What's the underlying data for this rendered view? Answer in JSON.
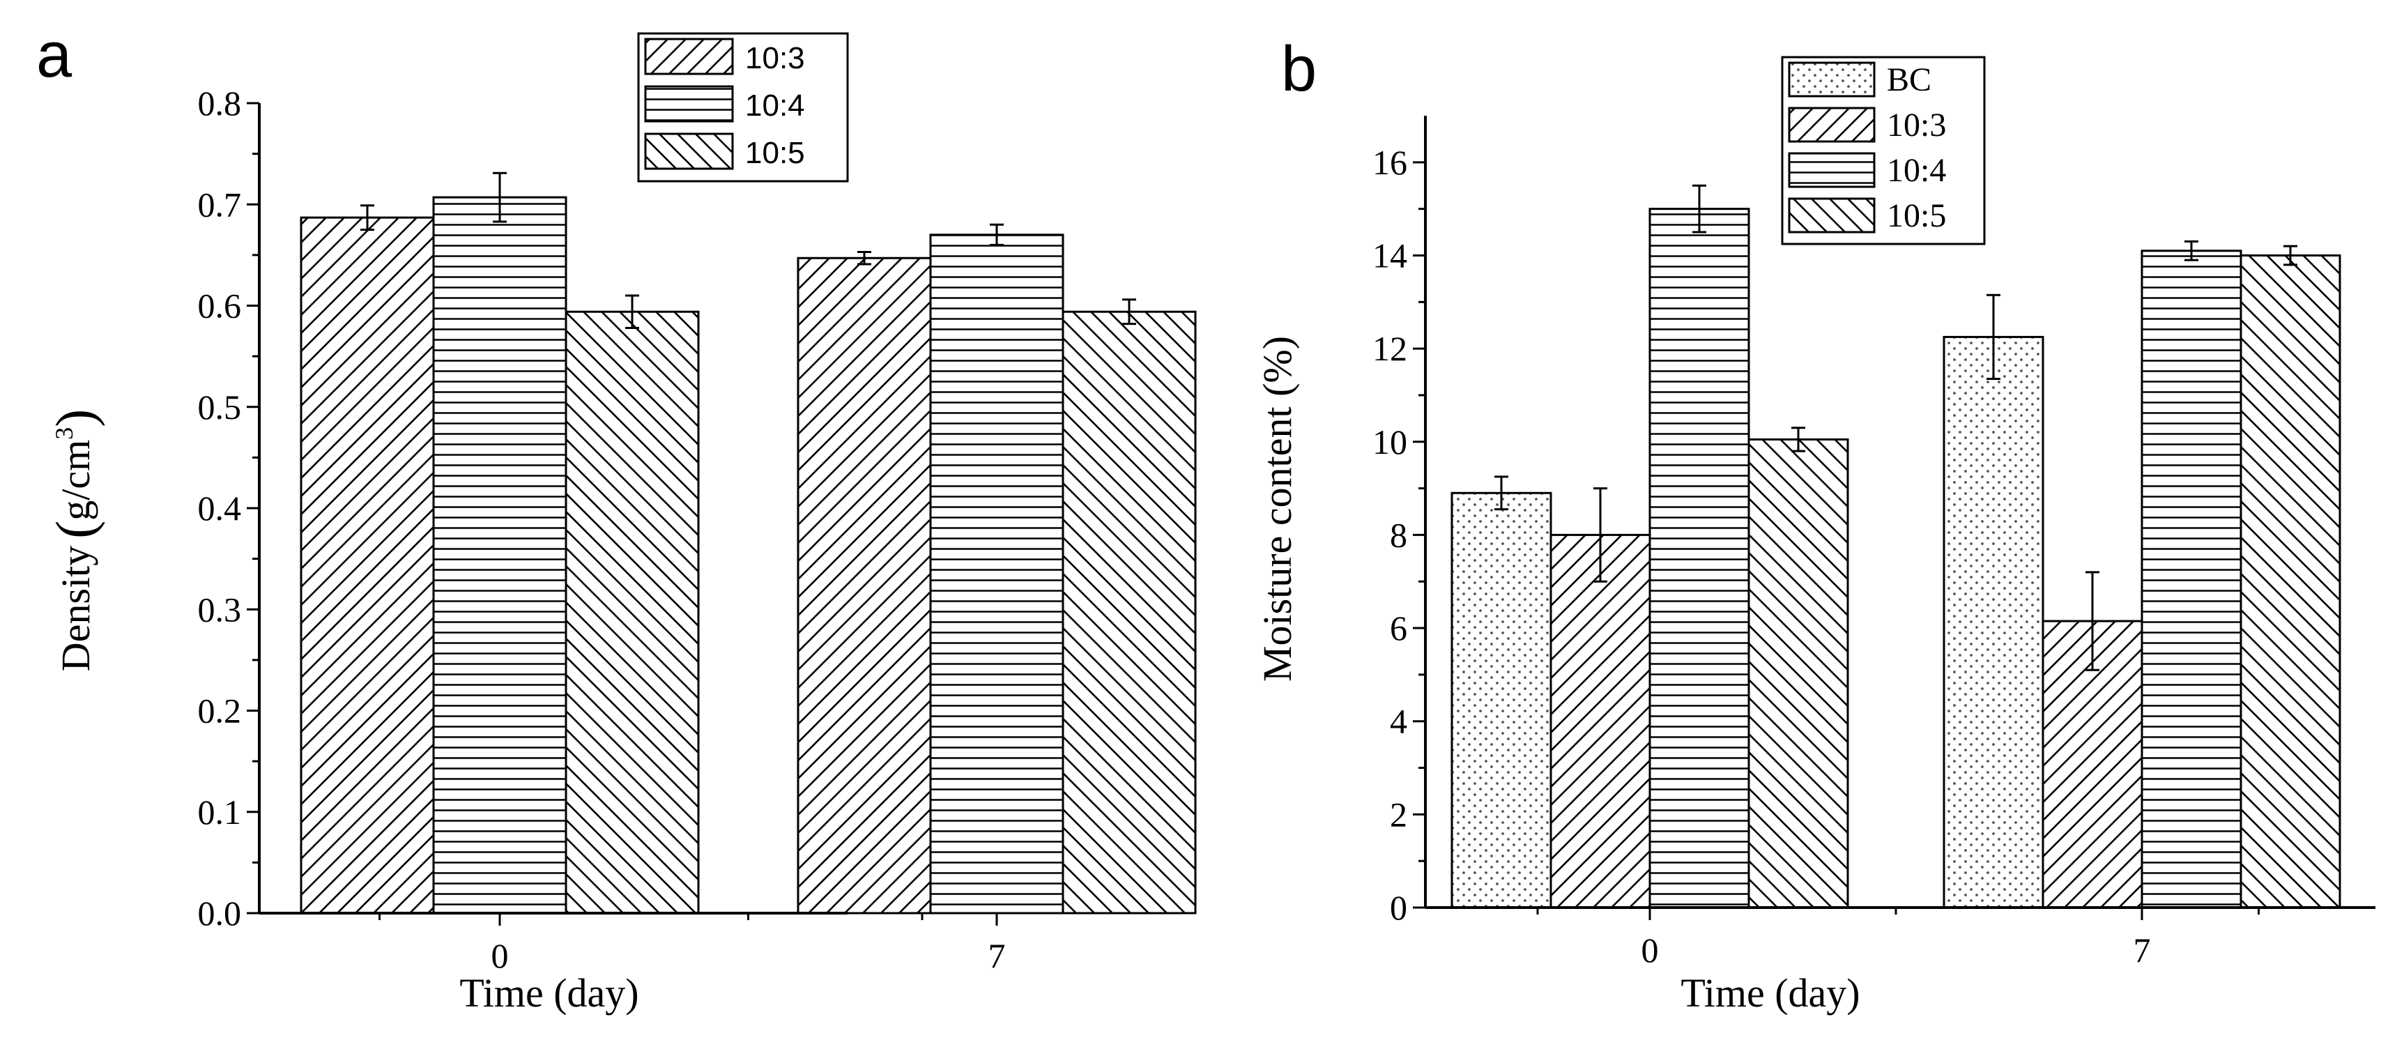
{
  "colors": {
    "ink": "#000000",
    "background": "#ffffff",
    "dots": "#555555"
  },
  "chart_data": [
    {
      "panel": "a",
      "type": "bar",
      "title": "",
      "xlabel": "Time (day)",
      "ylabel_prefix": "Density",
      "ylabel_unit": "g/cm",
      "ylabel_sup": "3",
      "categories": [
        "0",
        "7"
      ],
      "ylim": [
        0,
        0.8
      ],
      "yticks": [
        "0.0",
        "0.1",
        "0.2",
        "0.3",
        "0.4",
        "0.5",
        "0.6",
        "0.7",
        "0.8"
      ],
      "legend_position": "top-center",
      "series": [
        {
          "name": "10:3",
          "pattern": "diagonal-up",
          "values": [
            0.687,
            0.647
          ],
          "errors": [
            0.012,
            0.006
          ]
        },
        {
          "name": "10:4",
          "pattern": "horizontal",
          "values": [
            0.707,
            0.67
          ],
          "errors": [
            0.024,
            0.01
          ]
        },
        {
          "name": "10:5",
          "pattern": "diagonal-down",
          "values": [
            0.594,
            0.594
          ],
          "errors": [
            0.016,
            0.012
          ]
        }
      ]
    },
    {
      "panel": "b",
      "type": "bar",
      "title": "",
      "xlabel": "Time (day)",
      "ylabel": "Moisture content (%)",
      "categories": [
        "0",
        "7"
      ],
      "ylim": [
        0,
        17
      ],
      "yticks": [
        "0",
        "2",
        "4",
        "6",
        "8",
        "10",
        "12",
        "14",
        "16"
      ],
      "legend_position": "top-center",
      "series": [
        {
          "name": "BC",
          "pattern": "dots",
          "values": [
            8.9,
            12.25
          ],
          "errors": [
            0.35,
            0.9
          ]
        },
        {
          "name": "10:3",
          "pattern": "diagonal-up",
          "values": [
            8.0,
            6.15
          ],
          "errors": [
            1.0,
            1.05
          ]
        },
        {
          "name": "10:4",
          "pattern": "horizontal",
          "values": [
            15.0,
            14.1
          ],
          "errors": [
            0.5,
            0.2
          ]
        },
        {
          "name": "10:5",
          "pattern": "diagonal-down",
          "values": [
            10.05,
            14.0
          ],
          "errors": [
            0.25,
            0.2
          ]
        }
      ]
    }
  ]
}
